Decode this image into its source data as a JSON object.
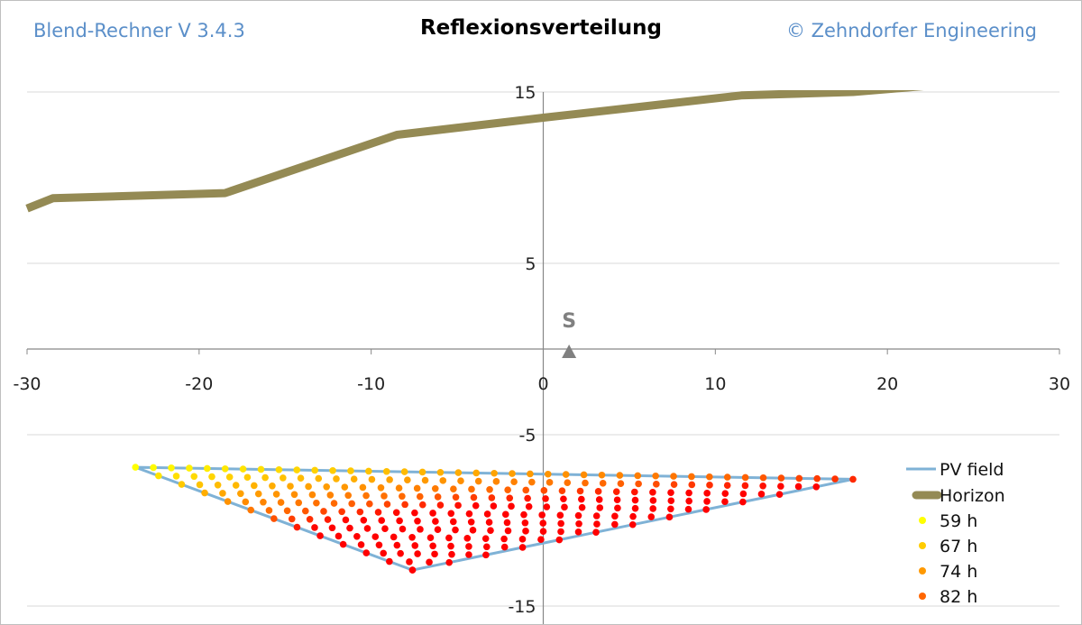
{
  "header": {
    "app_version": "Blend-Rechner  V 3.4.3",
    "title": "Reflexionsverteilung",
    "copyright": "© Zehndorfer Engineering"
  },
  "chart_data": {
    "type": "scatter",
    "title": "Reflexionsverteilung",
    "xlim": [
      -30,
      30
    ],
    "ylim": [
      -15,
      15
    ],
    "xticks": [
      -30,
      -20,
      -10,
      0,
      10,
      20,
      30
    ],
    "yticks": [
      -15,
      -5,
      5,
      15
    ],
    "grid": true,
    "legend_position": "bottom-right",
    "south_marker": {
      "label": "S",
      "x": 1.5,
      "y": 0
    },
    "horizon": {
      "name": "Horizon",
      "color": "#948a54",
      "points": [
        [
          -30,
          8.2
        ],
        [
          -28.5,
          8.8
        ],
        [
          -18.5,
          9.1
        ],
        [
          -8.5,
          12.5
        ],
        [
          0,
          13.5
        ],
        [
          11.5,
          14.8
        ],
        [
          18,
          15
        ],
        [
          30,
          16
        ]
      ]
    },
    "pv_field": {
      "name": "PV field",
      "color": "#7fb2d6",
      "vertices": [
        [
          -23.7,
          -6.9
        ],
        [
          18.0,
          -7.6
        ],
        [
          -7.6,
          -12.9
        ]
      ]
    },
    "reflection_series": [
      {
        "name": "59 h",
        "color": "#ffff00"
      },
      {
        "name": "67 h",
        "color": "#ffcc00"
      },
      {
        "name": "74 h",
        "color": "#ff9900"
      },
      {
        "name": "82 h",
        "color": "#ff6600"
      }
    ],
    "max_color": "#ff0000",
    "grid_rows": 12,
    "grid_cols": 40
  }
}
